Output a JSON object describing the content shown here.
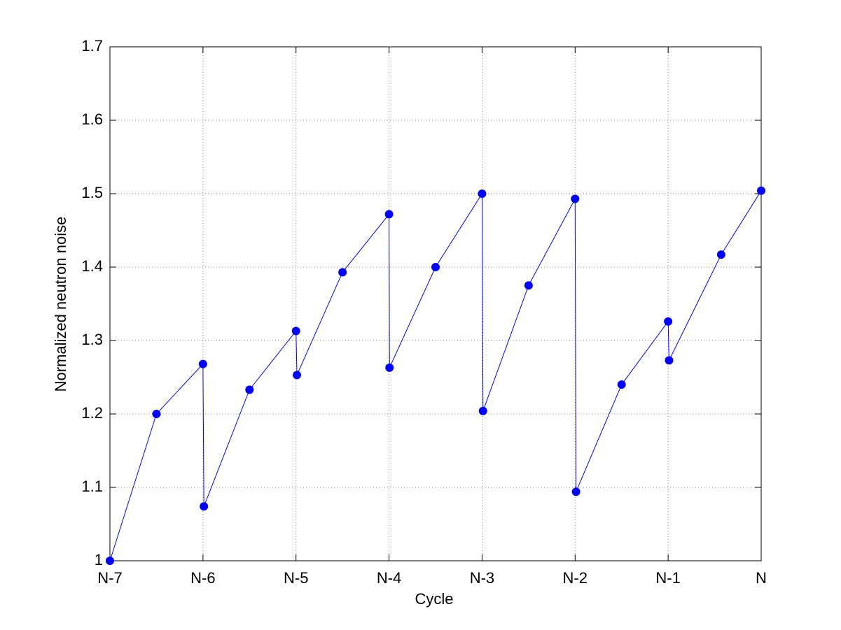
{
  "chart_data": {
    "type": "line",
    "xlabel": "Cycle",
    "ylabel": "Normalized neutron noise",
    "x": [
      0,
      0.5,
      1,
      1.01,
      1.5,
      2,
      2.01,
      2.5,
      3,
      3.005,
      3.5,
      4,
      4.01,
      4.5,
      5,
      5.01,
      5.5,
      6,
      6.01,
      6.57,
      7
    ],
    "series": [
      {
        "name": "Normalized neutron noise",
        "color": "#0000ff",
        "values": [
          1.0,
          1.2,
          1.268,
          1.074,
          1.233,
          1.313,
          1.253,
          1.393,
          1.472,
          1.263,
          1.4,
          1.5,
          1.204,
          1.375,
          1.493,
          1.094,
          1.24,
          1.326,
          1.273,
          1.417,
          1.504
        ]
      }
    ],
    "xlim": [
      0,
      7
    ],
    "xticks": [
      {
        "value": 0,
        "label": "N-7"
      },
      {
        "value": 1,
        "label": "N-6"
      },
      {
        "value": 2,
        "label": "N-5"
      },
      {
        "value": 3,
        "label": "N-4"
      },
      {
        "value": 4,
        "label": "N-3"
      },
      {
        "value": 5,
        "label": "N-2"
      },
      {
        "value": 6,
        "label": "N-1"
      },
      {
        "value": 7,
        "label": "N"
      }
    ],
    "ylim": [
      1,
      1.7
    ],
    "yticks": [
      1,
      1.1,
      1.2,
      1.3,
      1.4,
      1.5,
      1.6,
      1.7
    ],
    "grid": true
  }
}
